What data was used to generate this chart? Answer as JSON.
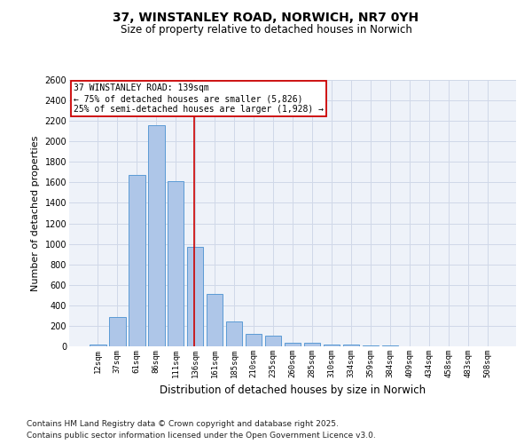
{
  "title": "37, WINSTANLEY ROAD, NORWICH, NR7 0YH",
  "subtitle": "Size of property relative to detached houses in Norwich",
  "xlabel": "Distribution of detached houses by size in Norwich",
  "ylabel": "Number of detached properties",
  "categories": [
    "12sqm",
    "37sqm",
    "61sqm",
    "86sqm",
    "111sqm",
    "136sqm",
    "161sqm",
    "185sqm",
    "210sqm",
    "235sqm",
    "260sqm",
    "285sqm",
    "310sqm",
    "334sqm",
    "359sqm",
    "384sqm",
    "409sqm",
    "434sqm",
    "458sqm",
    "483sqm",
    "508sqm"
  ],
  "values": [
    20,
    290,
    1670,
    2160,
    1610,
    970,
    510,
    245,
    125,
    100,
    35,
    35,
    15,
    20,
    5,
    5,
    0,
    0,
    0,
    0,
    0
  ],
  "bar_color": "#aec6e8",
  "bar_edge_color": "#5b9bd5",
  "grid_color": "#d0d8e8",
  "bg_color": "#eef2f9",
  "ylim": [
    0,
    2600
  ],
  "yticks": [
    0,
    200,
    400,
    600,
    800,
    1000,
    1200,
    1400,
    1600,
    1800,
    2000,
    2200,
    2400,
    2600
  ],
  "property_line_color": "#cc0000",
  "property_line_x": 4.93,
  "annotation_text": "37 WINSTANLEY ROAD: 139sqm\n← 75% of detached houses are smaller (5,826)\n25% of semi-detached houses are larger (1,928) →",
  "annotation_box_color": "#cc0000",
  "footer_line1": "Contains HM Land Registry data © Crown copyright and database right 2025.",
  "footer_line2": "Contains public sector information licensed under the Open Government Licence v3.0."
}
